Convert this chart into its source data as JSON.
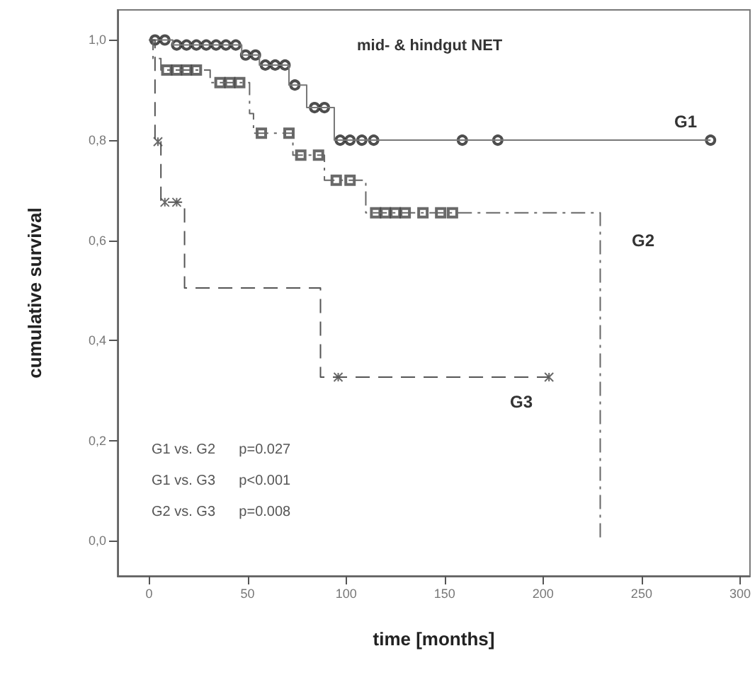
{
  "chart_data": {
    "type": "step",
    "title": "mid- & hindgut NET",
    "xlabel": "time [months]",
    "ylabel": "cumulative survival",
    "xlim": [
      -16,
      305
    ],
    "xticks": [
      0,
      50,
      100,
      150,
      200,
      250,
      300
    ],
    "ylim": [
      -0.07,
      1.06
    ],
    "yticks": [
      {
        "value": 0,
        "label": "0,0"
      },
      {
        "value": 0.2,
        "label": "0,2"
      },
      {
        "value": 0.4,
        "label": "0,4"
      },
      {
        "value": 0.6,
        "label": "0,6"
      },
      {
        "value": 0.8,
        "label": "0,8"
      },
      {
        "value": 1,
        "label": "1,0"
      }
    ],
    "grid": false,
    "series": [
      {
        "type": "step",
        "color": "#777777",
        "line_style": "solid",
        "marker": "none",
        "x": [
          0,
          12,
          47,
          56,
          71,
          80,
          94,
          285
        ],
        "values": [
          1,
          0.99,
          0.97,
          0.95,
          0.91,
          0.865,
          0.8,
          0.8
        ]
      },
      {
        "type": "step",
        "color": "#666666",
        "line_style": "dashdot",
        "marker": "none",
        "x": [
          0,
          2,
          6,
          31,
          51,
          53,
          73,
          89,
          110,
          229
        ],
        "values": [
          1,
          0.963,
          0.94,
          0.915,
          0.853,
          0.814,
          0.77,
          0.72,
          0.655,
          0
        ]
      },
      {
        "type": "step",
        "color": "#555555",
        "line_style": "dashed",
        "marker": "none",
        "x": [
          0,
          3,
          6,
          18,
          87,
          203
        ],
        "values": [
          1,
          0.797,
          0.676,
          0.505,
          0.327,
          0.327
        ]
      },
      {
        "type": "scatter",
        "color": "#222222",
        "marker": "circle",
        "x": [
          3,
          8,
          14,
          19,
          24,
          29,
          34,
          39,
          44,
          49,
          54,
          59,
          64,
          69,
          74,
          84,
          89,
          97,
          102,
          108,
          114,
          159,
          177,
          285
        ],
        "values": [
          1,
          1,
          0.99,
          0.99,
          0.99,
          0.99,
          0.99,
          0.99,
          0.99,
          0.97,
          0.97,
          0.95,
          0.95,
          0.95,
          0.91,
          0.865,
          0.865,
          0.8,
          0.8,
          0.8,
          0.8,
          0.8,
          0.8,
          0.8
        ]
      },
      {
        "type": "scatter",
        "color": "#444444",
        "marker": "square",
        "x": [
          9,
          14,
          19,
          24,
          36,
          41,
          46,
          57,
          71,
          77,
          86,
          95,
          102,
          115,
          120,
          125,
          130,
          139,
          148,
          154
        ],
        "values": [
          0.94,
          0.94,
          0.94,
          0.94,
          0.915,
          0.915,
          0.915,
          0.814,
          0.814,
          0.77,
          0.77,
          0.72,
          0.72,
          0.655,
          0.655,
          0.655,
          0.655,
          0.655,
          0.655,
          0.655
        ]
      },
      {
        "type": "scatter",
        "color": "#444444",
        "marker": "cross",
        "x": [
          4.5,
          8,
          14,
          96,
          203
        ],
        "values": [
          0.797,
          0.676,
          0.676,
          0.327,
          0.327
        ]
      }
    ],
    "annotations": [
      "G1",
      "G2",
      "G3",
      "G1 vs. G2     p=0.027",
      "G1 vs. G3     p<0.001",
      "G2 vs. G3     p=0.008"
    ]
  }
}
